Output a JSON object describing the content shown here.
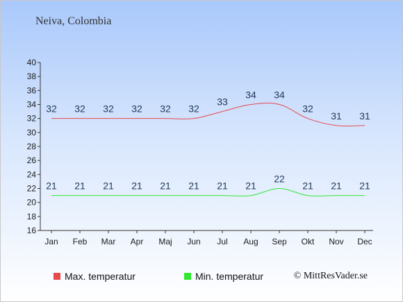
{
  "location": "Neiva, Colombia",
  "credit": "© MittResVader.se",
  "chart_data": {
    "type": "line",
    "title": "",
    "xlabel": "",
    "ylabel": "",
    "categories": [
      "Jan",
      "Feb",
      "Mar",
      "Apr",
      "Maj",
      "Jun",
      "Jul",
      "Aug",
      "Sep",
      "Okt",
      "Nov",
      "Dec"
    ],
    "ylim": [
      16,
      40
    ],
    "yticks": [
      16,
      18,
      20,
      22,
      24,
      26,
      28,
      30,
      32,
      34,
      36,
      38,
      40
    ],
    "grid": false,
    "legend_position": "bottom-left",
    "series": [
      {
        "name": "Max. temperatur",
        "color": "#e8494b",
        "values": [
          32,
          32,
          32,
          32,
          32,
          32,
          33,
          34,
          34,
          32,
          31,
          31
        ]
      },
      {
        "name": "Min. temperatur",
        "color": "#30e830",
        "values": [
          21,
          21,
          21,
          21,
          21,
          21,
          21,
          21,
          22,
          21,
          21,
          21
        ]
      }
    ]
  }
}
